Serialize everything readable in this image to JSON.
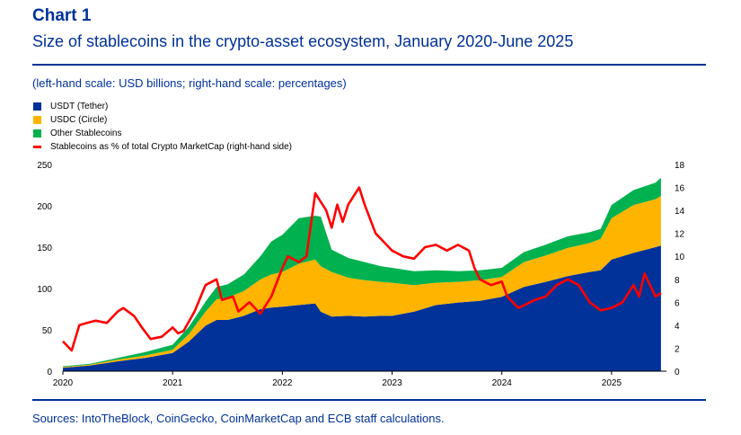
{
  "header": {
    "chart_label": "Chart 1",
    "title": "Size of stablecoins in the crypto-asset ecosystem, January 2020-June 2025",
    "subtitle": "(left-hand scale: USD billions; right-hand scale: percentages)"
  },
  "footer": {
    "sources": "Sources: IntoTheBlock, CoinGecko, CoinMarketCap and ECB staff calculations."
  },
  "legend": [
    {
      "label": "USDT (Tether)",
      "color": "#003299",
      "kind": "area"
    },
    {
      "label": "USDC (Circle)",
      "color": "#ffb400",
      "kind": "area"
    },
    {
      "label": "Other Stablecoins",
      "color": "#00b14f",
      "kind": "area"
    },
    {
      "label": "Stablecoins as % of total Crypto MarketCap (right-hand side)",
      "color": "#ff0000",
      "kind": "line"
    }
  ],
  "chart_data": {
    "type": "area",
    "stacked": true,
    "x": [
      2020.0,
      2020.25,
      2020.5,
      2020.75,
      2021.0,
      2021.15,
      2021.3,
      2021.4,
      2021.5,
      2021.65,
      2021.8,
      2021.9,
      2022.0,
      2022.15,
      2022.3,
      2022.35,
      2022.45,
      2022.6,
      2022.75,
      2022.9,
      2023.0,
      2023.2,
      2023.4,
      2023.6,
      2023.8,
      2024.0,
      2024.2,
      2024.4,
      2024.6,
      2024.8,
      2024.9,
      2025.0,
      2025.2,
      2025.4,
      2025.45
    ],
    "series": [
      {
        "name": "USDT (Tether)",
        "color": "#003299",
        "values": [
          4,
          7,
          12,
          16,
          22,
          36,
          55,
          62,
          62,
          67,
          75,
          77,
          78,
          80,
          82,
          72,
          66,
          67,
          66,
          67,
          67,
          72,
          80,
          83,
          85,
          90,
          102,
          108,
          115,
          120,
          122,
          135,
          143,
          150,
          152
        ]
      },
      {
        "name": "USDC (Circle)",
        "color": "#ffb400",
        "values": [
          1,
          1,
          2,
          3,
          4,
          9,
          17,
          25,
          27,
          30,
          36,
          40,
          42,
          50,
          53,
          55,
          54,
          46,
          44,
          41,
          40,
          32,
          27,
          25,
          25,
          24,
          30,
          32,
          34,
          35,
          38,
          50,
          58,
          58,
          60
        ]
      },
      {
        "name": "Other Stablecoins",
        "color": "#00b14f",
        "values": [
          1,
          1,
          2,
          4,
          6,
          9,
          12,
          15,
          16,
          20,
          28,
          40,
          45,
          55,
          53,
          60,
          27,
          24,
          22,
          19,
          18,
          17,
          15,
          13,
          12,
          11,
          12,
          13,
          14,
          13,
          12,
          16,
          18,
          20,
          22
        ]
      }
    ],
    "line_series": {
      "name": "Stablecoins as % of total Crypto MarketCap (right-hand side)",
      "color": "#ff0000",
      "axis": "right",
      "x": [
        2020.0,
        2020.08,
        2020.15,
        2020.22,
        2020.3,
        2020.4,
        2020.5,
        2020.55,
        2020.65,
        2020.72,
        2020.8,
        2020.9,
        2021.0,
        2021.05,
        2021.1,
        2021.2,
        2021.3,
        2021.4,
        2021.45,
        2021.55,
        2021.6,
        2021.7,
        2021.8,
        2021.9,
        2022.0,
        2022.05,
        2022.15,
        2022.22,
        2022.3,
        2022.4,
        2022.45,
        2022.5,
        2022.55,
        2022.6,
        2022.7,
        2022.75,
        2022.85,
        2022.95,
        2023.0,
        2023.1,
        2023.2,
        2023.3,
        2023.4,
        2023.5,
        2023.6,
        2023.7,
        2023.75,
        2023.8,
        2023.9,
        2024.0,
        2024.05,
        2024.15,
        2024.3,
        2024.4,
        2024.5,
        2024.6,
        2024.7,
        2024.8,
        2024.9,
        2025.0,
        2025.1,
        2025.2,
        2025.25,
        2025.3,
        2025.35,
        2025.4,
        2025.45
      ],
      "values": [
        2.6,
        1.8,
        4.0,
        4.2,
        4.4,
        4.2,
        5.2,
        5.5,
        4.8,
        3.8,
        2.8,
        3.0,
        3.8,
        3.3,
        3.5,
        5.2,
        7.5,
        8.0,
        6.2,
        6.5,
        5.2,
        6.0,
        5.0,
        6.5,
        9.0,
        10.0,
        9.5,
        10.0,
        15.5,
        14.0,
        12.5,
        14.5,
        13.0,
        14.5,
        16.0,
        14.5,
        12.0,
        11.0,
        10.5,
        10.0,
        9.8,
        10.8,
        11.0,
        10.5,
        11.0,
        10.5,
        9.0,
        8.0,
        7.5,
        7.8,
        6.5,
        5.5,
        6.2,
        6.5,
        7.5,
        8.0,
        7.5,
        6.0,
        5.3,
        5.5,
        6.0,
        7.5,
        6.5,
        8.5,
        7.5,
        6.5,
        6.8
      ]
    },
    "x_ticks": [
      "2020",
      "2021",
      "2022",
      "2023",
      "2024",
      "2025"
    ],
    "y_left_ticks": [
      0,
      50,
      100,
      150,
      200,
      250
    ],
    "y_right_ticks": [
      0,
      2,
      4,
      6,
      8,
      10,
      12,
      14,
      16,
      18
    ],
    "xlim": [
      2020,
      2025.5
    ],
    "ylim_left": [
      0,
      250
    ],
    "ylim_right": [
      0,
      18
    ],
    "xlabel": "",
    "ylabel_left": "",
    "ylabel_right": "",
    "grid": false,
    "legend_placement": "top-left"
  }
}
